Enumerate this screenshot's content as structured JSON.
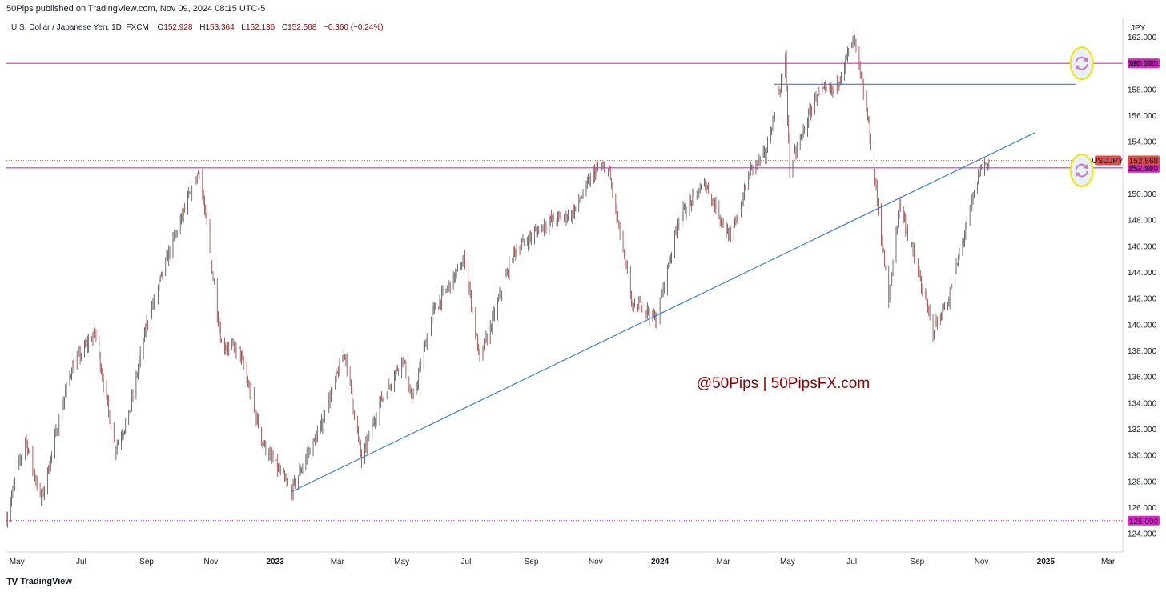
{
  "header": {
    "published": "50Pips published on TradingView.com, Nov 09, 2024 08:15 UTC-5"
  },
  "legend": {
    "symbol": "U.S. Dollar / Japanese Yen, 1D, FXCM",
    "o_label": "O",
    "open": "152.928",
    "h_label": "H",
    "high": "153.364",
    "l_label": "L",
    "low": "152.136",
    "c_label": "C",
    "close": "152.568",
    "change": "−0.360 (−0.24%)"
  },
  "watermark": "@50Pips  |  50PipsFX.com",
  "footer": {
    "logo": "TV",
    "brand": "TradingView"
  },
  "colors": {
    "up": "#26a69a",
    "down": "#ef5350",
    "bar": "#4a4a4a",
    "horizontal_line": "#e91ed4",
    "trend_line": "#3179f5",
    "last_price_badge": "#e04b48",
    "level_badge": "#e91ed4",
    "axis_text": "#131722"
  },
  "chart_data": {
    "type": "ohlc",
    "symbol": "USDJPY",
    "timeframe": "1D",
    "currency": "JPY",
    "last_price": 152.568,
    "ylim": [
      122.6,
      163.5
    ],
    "y_ticks": [
      124,
      126,
      128,
      130,
      132,
      134,
      136,
      138,
      140,
      142,
      144,
      146,
      148,
      150,
      152,
      154,
      156,
      158,
      160,
      162
    ],
    "x_range": [
      "2022-04-21",
      "2025-03-15"
    ],
    "x_ticks": [
      {
        "label": "May",
        "date": "2022-05-01"
      },
      {
        "label": "Jul",
        "date": "2022-07-01"
      },
      {
        "label": "Sep",
        "date": "2022-09-01"
      },
      {
        "label": "Nov",
        "date": "2022-11-01"
      },
      {
        "label": "2023",
        "date": "2023-01-01"
      },
      {
        "label": "Mar",
        "date": "2023-03-01"
      },
      {
        "label": "May",
        "date": "2023-05-01"
      },
      {
        "label": "Jul",
        "date": "2023-07-01"
      },
      {
        "label": "Sep",
        "date": "2023-09-01"
      },
      {
        "label": "Nov",
        "date": "2023-11-01"
      },
      {
        "label": "2024",
        "date": "2024-01-01"
      },
      {
        "label": "Mar",
        "date": "2024-03-01"
      },
      {
        "label": "May",
        "date": "2024-05-01"
      },
      {
        "label": "Jul",
        "date": "2024-07-01"
      },
      {
        "label": "Sep",
        "date": "2024-09-01"
      },
      {
        "label": "Nov",
        "date": "2024-11-01"
      },
      {
        "label": "2025",
        "date": "2025-01-01"
      },
      {
        "label": "Mar",
        "date": "2025-03-01"
      }
    ],
    "price_path": [
      [
        "2022-04-21",
        125.2
      ],
      [
        "2022-05-09",
        131.3
      ],
      [
        "2022-05-24",
        126.5
      ],
      [
        "2022-06-15",
        134.5
      ],
      [
        "2022-06-22",
        136.7
      ],
      [
        "2022-07-14",
        139.4
      ],
      [
        "2022-08-02",
        130.5
      ],
      [
        "2022-08-15",
        133.0
      ],
      [
        "2022-09-01",
        140.0
      ],
      [
        "2022-09-22",
        145.5
      ],
      [
        "2022-10-21",
        151.9
      ],
      [
        "2022-11-11",
        138.5
      ],
      [
        "2022-11-28",
        138.0
      ],
      [
        "2022-12-20",
        131.0
      ],
      [
        "2023-01-16",
        127.2
      ],
      [
        "2023-01-31",
        130.0
      ],
      [
        "2023-02-10",
        131.5
      ],
      [
        "2023-03-08",
        137.9
      ],
      [
        "2023-03-24",
        129.6
      ],
      [
        "2023-04-10",
        134.0
      ],
      [
        "2023-05-02",
        137.5
      ],
      [
        "2023-05-11",
        134.0
      ],
      [
        "2023-05-30",
        140.9
      ],
      [
        "2023-06-30",
        145.0
      ],
      [
        "2023-07-14",
        137.2
      ],
      [
        "2023-08-15",
        145.5
      ],
      [
        "2023-09-15",
        147.8
      ],
      [
        "2023-10-10",
        148.5
      ],
      [
        "2023-10-31",
        151.7
      ],
      [
        "2023-11-13",
        151.9
      ],
      [
        "2023-12-07",
        141.0
      ],
      [
        "2023-12-14",
        141.7
      ],
      [
        "2023-12-28",
        140.3
      ],
      [
        "2024-01-19",
        148.2
      ],
      [
        "2024-02-13",
        150.8
      ],
      [
        "2024-03-08",
        146.5
      ],
      [
        "2024-03-27",
        151.9
      ],
      [
        "2024-04-10",
        153.0
      ],
      [
        "2024-04-29",
        160.2
      ],
      [
        "2024-05-03",
        151.9
      ],
      [
        "2024-05-29",
        157.7
      ],
      [
        "2024-06-14",
        157.9
      ],
      [
        "2024-07-03",
        161.9
      ],
      [
        "2024-07-17",
        155.3
      ],
      [
        "2024-08-05",
        141.7
      ],
      [
        "2024-08-15",
        149.4
      ],
      [
        "2024-09-16",
        139.6
      ],
      [
        "2024-10-01",
        142.0
      ],
      [
        "2024-10-31",
        152.0
      ],
      [
        "2024-11-07",
        152.4
      ],
      [
        "2024-11-08",
        152.57
      ]
    ],
    "horizontal_lines": [
      {
        "price": 160.0,
        "label": "160.000",
        "style": "solid"
      },
      {
        "price": 152.0,
        "label": "152.000",
        "style": "solid"
      },
      {
        "price": 125.0,
        "label": "125.000",
        "style": "dotted"
      }
    ],
    "last_price_line": {
      "price": 152.568,
      "badge_symbol": "USDJPY",
      "badge_price": "152.568"
    },
    "segments": [
      {
        "from": [
          "2024-04-18",
          158.4
        ],
        "to": [
          "2025-01-30",
          158.4
        ]
      },
      {
        "from": [
          "2023-01-16",
          127.2
        ],
        "to": [
          "2024-12-22",
          154.7
        ]
      }
    ],
    "markers": [
      {
        "date": "2025-02-04",
        "price": 160.0,
        "icon": "refresh-icon"
      },
      {
        "date": "2025-02-04",
        "price": 151.8,
        "icon": "refresh-icon"
      }
    ]
  }
}
